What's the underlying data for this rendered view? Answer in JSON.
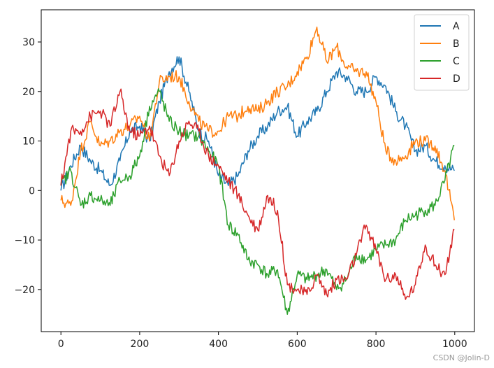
{
  "chart_data": {
    "type": "line",
    "title": "",
    "xlabel": "",
    "ylabel": "",
    "xlim": [
      -50,
      1050
    ],
    "ylim": [
      -28.5,
      36.5
    ],
    "xticks": [
      0,
      200,
      400,
      600,
      800,
      1000
    ],
    "yticks": [
      -20,
      -10,
      0,
      10,
      20,
      30
    ],
    "grid": false,
    "legend_position": "upper-right",
    "x": [
      0,
      25,
      50,
      75,
      100,
      125,
      150,
      175,
      200,
      225,
      250,
      275,
      300,
      325,
      350,
      375,
      400,
      425,
      450,
      475,
      500,
      525,
      550,
      575,
      600,
      625,
      650,
      675,
      700,
      725,
      750,
      775,
      800,
      825,
      850,
      875,
      900,
      925,
      950,
      975,
      999
    ],
    "series": [
      {
        "name": "A",
        "color": "#1f77b4",
        "values": [
          0,
          5,
          9,
          6,
          4,
          1,
          6,
          12,
          13,
          10,
          18,
          24,
          27,
          20,
          12,
          10,
          3,
          1,
          3,
          8,
          11,
          13,
          16,
          17,
          11,
          14,
          16,
          20,
          24,
          23,
          20,
          20,
          23,
          21,
          16,
          13,
          8,
          9,
          6,
          5,
          4
        ]
      },
      {
        "name": "B",
        "color": "#ff7f0e",
        "values": [
          -2,
          -3,
          8,
          14,
          9,
          10,
          12,
          13,
          15,
          10,
          22,
          23,
          23,
          18,
          14,
          12,
          12,
          15,
          15,
          17,
          16,
          18,
          20,
          21,
          24,
          27,
          33,
          26,
          29,
          25,
          24,
          24,
          18,
          8,
          6,
          7,
          10,
          10,
          9,
          4,
          -6
        ]
      },
      {
        "name": "C",
        "color": "#2ca02c",
        "values": [
          1,
          4,
          -3,
          -1,
          -2,
          -3,
          2,
          3,
          7,
          17,
          20,
          14,
          12,
          11,
          11,
          8,
          5,
          -7,
          -9,
          -14,
          -15,
          -17,
          -16,
          -25,
          -17,
          -18,
          -17,
          -16,
          -20,
          -18,
          -13,
          -14,
          -12,
          -11,
          -10,
          -6,
          -5,
          -4,
          -3,
          2,
          9
        ]
      },
      {
        "name": "D",
        "color": "#d62728",
        "values": [
          1,
          12,
          12,
          15,
          16,
          13,
          20,
          12,
          11,
          13,
          7,
          3,
          10,
          14,
          12,
          7,
          5,
          2,
          -1,
          -5,
          -8,
          -1,
          -4,
          -19,
          -20,
          -21,
          -17,
          -21,
          -18,
          -18,
          -13,
          -7,
          -12,
          -18,
          -17,
          -22,
          -19,
          -11,
          -15,
          -17,
          -8
        ]
      }
    ]
  },
  "watermark": "CSDN @Jolin-D"
}
